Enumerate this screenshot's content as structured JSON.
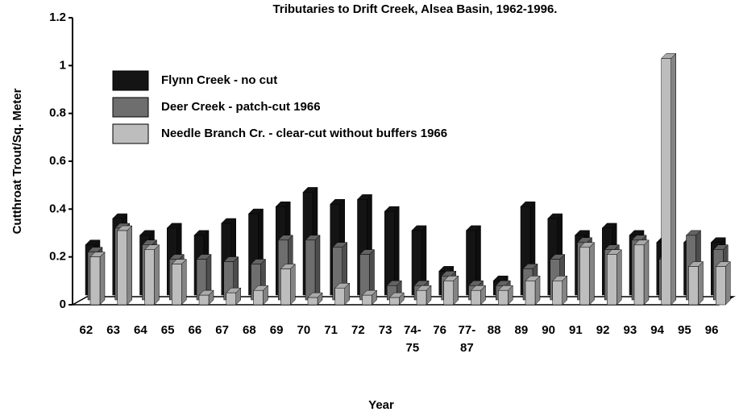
{
  "chart_data": {
    "type": "bar",
    "title": "Tributaries to Drift Creek, Alsea Basin, 1962-1996.",
    "y_label": "Cutthroat Trout/Sq. Meter",
    "x_label": "Year",
    "categories": [
      "62",
      "63",
      "64",
      "65",
      "66",
      "67",
      "68",
      "69",
      "70",
      "71",
      "72",
      "73",
      "74-75",
      "76",
      "77-87",
      "88",
      "89",
      "90",
      "91",
      "92",
      "93",
      "94",
      "95",
      "96"
    ],
    "series": [
      {
        "name": "Flynn Creek - no cut",
        "color": "#141414",
        "values": [
          0.21,
          0.32,
          0.25,
          0.28,
          0.25,
          0.3,
          0.34,
          0.37,
          0.43,
          0.38,
          0.4,
          0.35,
          0.27,
          0.1,
          0.27,
          0.06,
          0.37,
          0.32,
          0.25,
          0.28,
          0.25,
          0.22,
          0.22,
          0.22
        ]
      },
      {
        "name": "Deer Creek - patch-cut 1966",
        "color": "#6e6e6e",
        "values": [
          0.2,
          0.3,
          0.23,
          0.17,
          0.17,
          0.16,
          0.15,
          0.25,
          0.25,
          0.22,
          0.19,
          0.06,
          0.06,
          0.1,
          0.06,
          0.06,
          0.13,
          0.17,
          0.24,
          0.21,
          0.25,
          0.17,
          0.27,
          0.21
        ]
      },
      {
        "name": "Needle Branch Cr. - clear-cut without buffers 1966",
        "color": "#bdbdbd",
        "values": [
          0.2,
          0.31,
          0.23,
          0.17,
          0.04,
          0.05,
          0.06,
          0.15,
          0.03,
          0.07,
          0.04,
          0.03,
          0.06,
          0.1,
          0.06,
          0.06,
          0.1,
          0.1,
          0.24,
          0.21,
          0.25,
          1.03,
          0.16,
          0.16
        ]
      }
    ],
    "ylim": [
      0,
      1.2
    ],
    "yticks": [
      0,
      0.2,
      0.4,
      0.6,
      0.8,
      1,
      1.2
    ],
    "legend": "upper left"
  }
}
